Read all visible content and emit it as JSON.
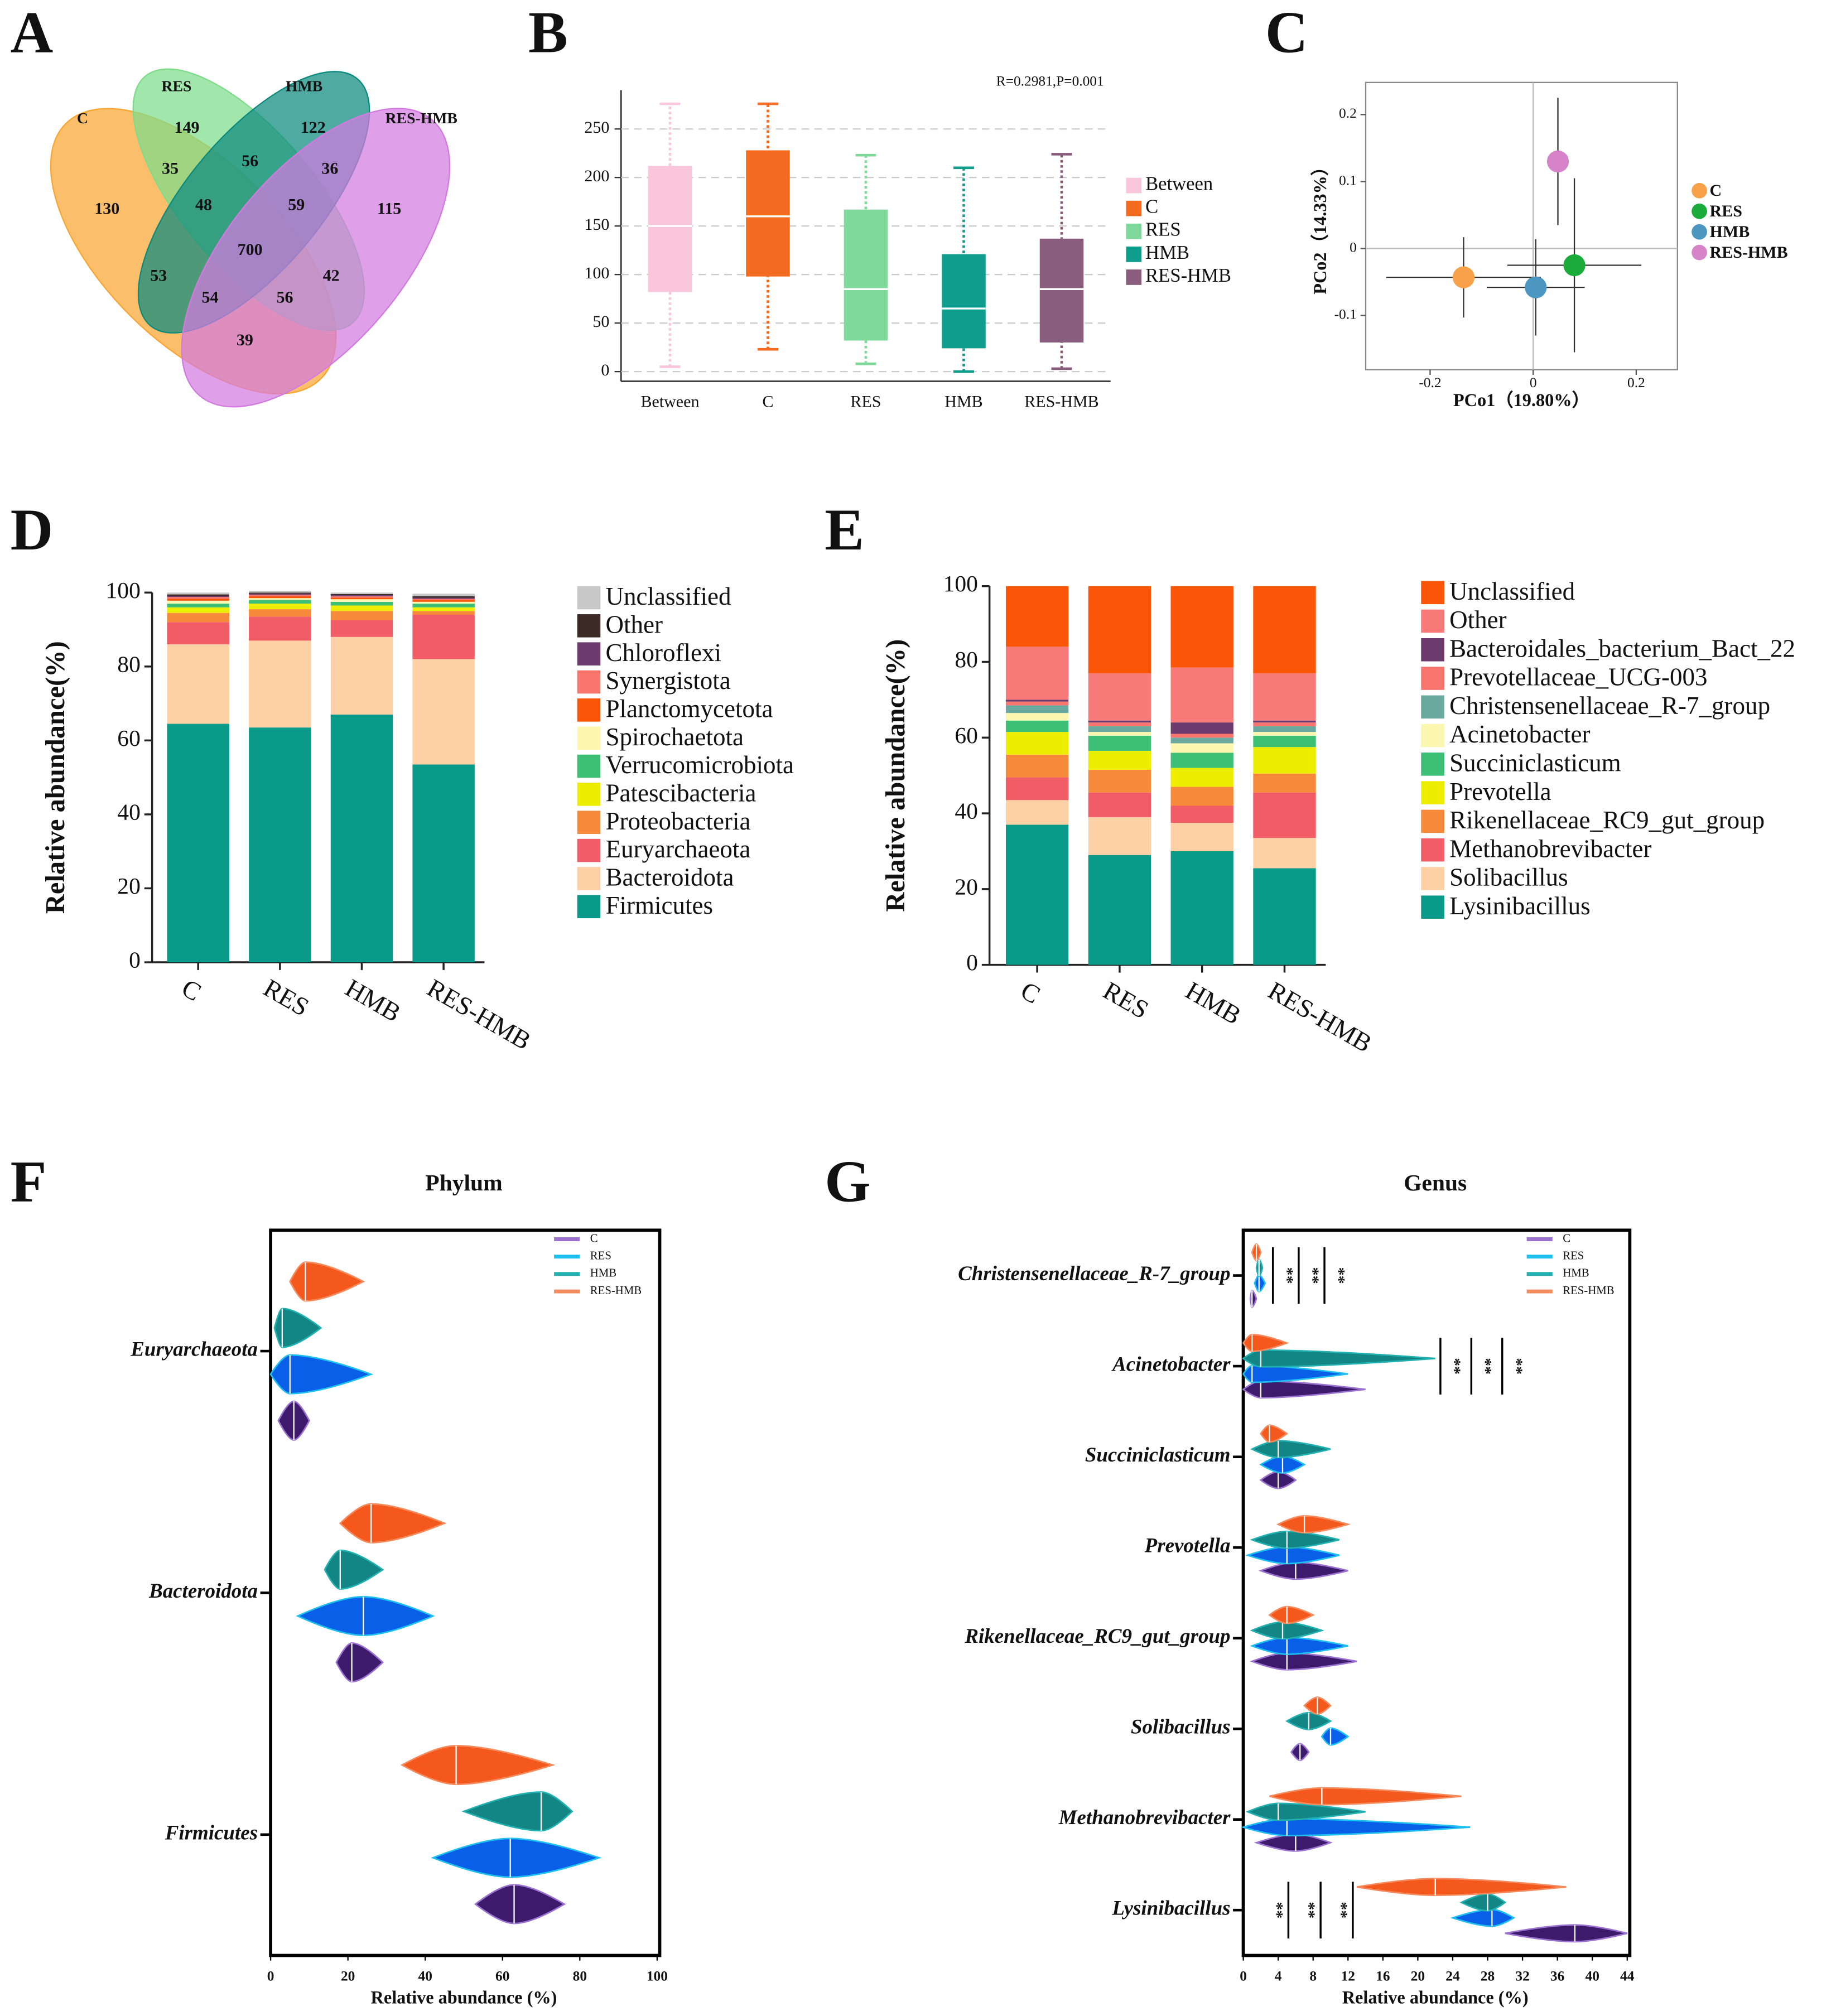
{
  "chart_data": [
    {
      "type": "venn",
      "panel": "A",
      "sets": [
        {
          "name": "C",
          "color": "#f9a531"
        },
        {
          "name": "RES",
          "color": "#7ddc8a"
        },
        {
          "name": "HMB",
          "color": "#0b8a7e"
        },
        {
          "name": "RES-HMB",
          "color": "#d27ae0"
        }
      ],
      "regions": [
        130,
        149,
        122,
        115,
        35,
        56,
        36,
        48,
        59,
        700,
        53,
        54,
        56,
        42,
        39
      ]
    },
    {
      "type": "box",
      "panel": "B",
      "annotation": "R=0.2981,P=0.001",
      "categories": [
        "Between",
        "C",
        "RES",
        "HMB",
        "RES-HMB"
      ],
      "colors": [
        "#f9c6dc",
        "#f26b21",
        "#7ed99b",
        "#0f9e8e",
        "#8a5d7f"
      ],
      "values": [
        {
          "min": 5,
          "q1": 82,
          "median": 150,
          "q3": 212,
          "max": 276
        },
        {
          "min": 23,
          "q1": 98,
          "median": 160,
          "q3": 228,
          "max": 276
        },
        {
          "min": 8,
          "q1": 32,
          "median": 85,
          "q3": 167,
          "max": 223
        },
        {
          "min": 0,
          "q1": 24,
          "median": 65,
          "q3": 121,
          "max": 210
        },
        {
          "min": 3,
          "q1": 30,
          "median": 85,
          "q3": 137,
          "max": 224
        }
      ],
      "ylim": [
        -10,
        290
      ],
      "yticks": [
        0,
        50,
        100,
        150,
        200,
        250
      ],
      "grid": true
    },
    {
      "type": "scatter",
      "panel": "C",
      "x_label": "PCo1（19.80%）",
      "y_label": "PCo2（14.33%）",
      "series": [
        {
          "name": "C",
          "color": "#f7a24a",
          "x": [
            -0.135
          ],
          "y": [
            -0.043
          ],
          "xerr": [
            0.15
          ],
          "yerr": [
            0.06
          ]
        },
        {
          "name": "RES",
          "color": "#1aab3a",
          "x": [
            0.08
          ],
          "y": [
            -0.025
          ],
          "xerr": [
            0.13
          ],
          "yerr": [
            0.13
          ]
        },
        {
          "name": "HMB",
          "color": "#4c97c1",
          "x": [
            0.005
          ],
          "y": [
            -0.058
          ],
          "xerr": [
            0.095
          ],
          "yerr": [
            0.072
          ]
        },
        {
          "name": "RES-HMB",
          "color": "#d683c9",
          "x": [
            0.048
          ],
          "y": [
            0.13
          ],
          "xerr": [
            0.02
          ],
          "yerr": [
            0.095
          ]
        }
      ],
      "xlim": [
        -0.325,
        0.28
      ],
      "ylim": [
        -0.181,
        0.248
      ],
      "xticks": [
        -0.2,
        0,
        0.2
      ],
      "yticks": [
        -0.1,
        0,
        0.1,
        0.2
      ]
    },
    {
      "type": "stacked_bar",
      "panel": "D",
      "y_label": "Relative abundance(%)",
      "categories": [
        "C",
        "RES",
        "HMB",
        "RES-HMB"
      ],
      "series": [
        {
          "name": "Firmicutes",
          "color": "#0a9a8a",
          "values": [
            64.5,
            63.5,
            67,
            53.5
          ]
        },
        {
          "name": "Bacteroidota",
          "color": "#fdd1a5",
          "values": [
            21.5,
            23.5,
            21,
            28.5
          ]
        },
        {
          "name": "Euryarchaeota",
          "color": "#f25c67",
          "values": [
            6,
            6.5,
            4.5,
            12
          ]
        },
        {
          "name": "Proteobacteria",
          "color": "#f7893b",
          "values": [
            2.5,
            2,
            2.5,
            1
          ]
        },
        {
          "name": "Patescibacteria",
          "color": "#eded00",
          "values": [
            1.5,
            1.5,
            1.5,
            1
          ]
        },
        {
          "name": "Verrucomicrobiota",
          "color": "#3dbf75",
          "values": [
            1,
            1,
            1,
            1
          ]
        },
        {
          "name": "Spirochaetota",
          "color": "#fbf7b0",
          "values": [
            0.8,
            0.5,
            0.7,
            0.5
          ]
        },
        {
          "name": "Planctomycetota",
          "color": "#fb5607",
          "values": [
            0.5,
            0.5,
            0.4,
            0.5
          ]
        },
        {
          "name": "Synergistota",
          "color": "#f9766f",
          "values": [
            0.5,
            0.4,
            0.4,
            0.3
          ]
        },
        {
          "name": "Chloroflexi",
          "color": "#6e3b6e",
          "values": [
            0.3,
            0.3,
            0.3,
            0.3
          ]
        },
        {
          "name": "Other",
          "color": "#3b2a26",
          "values": [
            0.4,
            0.3,
            0.3,
            0.4
          ]
        },
        {
          "name": "Unclassified",
          "color": "#c8c8c8",
          "values": [
            0.5,
            0.5,
            0.4,
            0.7
          ]
        }
      ],
      "ylim": [
        0,
        100
      ],
      "yticks": [
        0,
        20,
        40,
        60,
        80,
        100
      ]
    },
    {
      "type": "stacked_bar",
      "panel": "E",
      "y_label": "Relative abundance(%)",
      "categories": [
        "C",
        "RES",
        "HMB",
        "RES-HMB"
      ],
      "series": [
        {
          "name": "Lysinibacillus",
          "color": "#0a9a8a",
          "values": [
            37,
            29,
            30,
            25.5
          ]
        },
        {
          "name": "Solibacillus",
          "color": "#fdd1a5",
          "values": [
            6.5,
            10,
            7.5,
            8
          ]
        },
        {
          "name": "Methanobrevibacter",
          "color": "#f25c67",
          "values": [
            6,
            6.5,
            4.5,
            12
          ]
        },
        {
          "name": "Rikenellaceae_RC9_gut_group",
          "color": "#f7893b",
          "values": [
            6,
            6,
            5,
            5
          ]
        },
        {
          "name": "Prevotella",
          "color": "#eded00",
          "values": [
            6,
            5,
            5,
            7
          ]
        },
        {
          "name": "Succiniclasticum",
          "color": "#3dbf75",
          "values": [
            3,
            4,
            4,
            3
          ]
        },
        {
          "name": "Acinetobacter",
          "color": "#fbf7b0",
          "values": [
            2,
            1,
            2.5,
            1
          ]
        },
        {
          "name": "Christensenellaceae_R-7_group",
          "color": "#6aa9a0",
          "values": [
            2,
            1.5,
            1.5,
            1.5
          ]
        },
        {
          "name": "Prevotellaceae_UCG-003",
          "color": "#f9766f",
          "values": [
            1,
            1,
            1,
            1
          ]
        },
        {
          "name": "Bacteroidales_bacterium_Bact_22",
          "color": "#6e3b6e",
          "values": [
            0.5,
            0.5,
            3,
            0.5
          ]
        },
        {
          "name": "Other",
          "color": "#f87a78",
          "values": [
            14,
            12.5,
            14.5,
            12.5
          ]
        },
        {
          "name": "Unclassified",
          "color": "#fb5607",
          "values": [
            16,
            23,
            21.5,
            23
          ]
        }
      ],
      "ylim": [
        0,
        100
      ],
      "yticks": [
        0,
        20,
        40,
        60,
        80,
        100
      ]
    },
    {
      "type": "violin",
      "panel": "F",
      "title": "Phylum",
      "x_label": "Relative abundance (%)",
      "categories": [
        "Euryarchaeota",
        "Bacteroidota",
        "Firmicutes"
      ],
      "series": [
        {
          "name": "C",
          "color": "#3d1a6b",
          "edgecolor": "#9b72d0",
          "values": [
            {
              "min": 2,
              "median": 6,
              "max": 10
            },
            {
              "min": 17,
              "median": 21,
              "max": 29
            },
            {
              "min": 53,
              "median": 63,
              "max": 76
            }
          ]
        },
        {
          "name": "RES",
          "color": "#0a5fe8",
          "edgecolor": "#1ec0f0",
          "values": [
            {
              "min": 0,
              "median": 5,
              "max": 26
            },
            {
              "min": 7,
              "median": 24,
              "max": 42
            },
            {
              "min": 42,
              "median": 62,
              "max": 85
            }
          ]
        },
        {
          "name": "HMB",
          "color": "#138585",
          "edgecolor": "#20b0b0",
          "values": [
            {
              "min": 1,
              "median": 3,
              "max": 13
            },
            {
              "min": 14,
              "median": 18,
              "max": 29
            },
            {
              "min": 50,
              "median": 70,
              "max": 78
            }
          ]
        },
        {
          "name": "RES-HMB",
          "color": "#f4581c",
          "edgecolor": "#f58a5c",
          "values": [
            {
              "min": 5,
              "median": 9,
              "max": 24
            },
            {
              "min": 18,
              "median": 26,
              "max": 45
            },
            {
              "min": 34,
              "median": 48,
              "max": 73
            }
          ]
        }
      ],
      "xlim": [
        0,
        100
      ],
      "xticks": [
        0,
        20,
        40,
        60,
        80,
        100
      ]
    },
    {
      "type": "violin",
      "panel": "G",
      "title": "Genus",
      "x_label": "Relative abundance (%)",
      "categories": [
        "Christensenellaceae_R-7_group",
        "Acinetobacter",
        "Succiniclasticum",
        "Prevotella",
        "Rikenellaceae_RC9_gut_group",
        "Solibacillus",
        "Methanobrevibacter",
        "Lysinibacillus"
      ],
      "series": [
        {
          "name": "C",
          "color": "#3d1a6b",
          "edgecolor": "#9b72d0",
          "values": [
            {
              "min": 0.8,
              "median": 1,
              "max": 1.5
            },
            {
              "min": 0,
              "median": 2,
              "max": 14
            },
            {
              "min": 2,
              "median": 4,
              "max": 6
            },
            {
              "min": 2,
              "median": 6,
              "max": 12
            },
            {
              "min": 1,
              "median": 5,
              "max": 13
            },
            {
              "min": 5.5,
              "median": 6.5,
              "max": 7.5
            },
            {
              "min": 1.5,
              "median": 6,
              "max": 10
            },
            {
              "min": 30,
              "median": 38,
              "max": 44
            }
          ]
        },
        {
          "name": "RES",
          "color": "#0a5fe8",
          "edgecolor": "#1ec0f0",
          "values": [
            {
              "min": 1.3,
              "median": 1.8,
              "max": 2.5
            },
            {
              "min": 0,
              "median": 1,
              "max": 12
            },
            {
              "min": 2,
              "median": 4.5,
              "max": 7
            },
            {
              "min": 0.5,
              "median": 5,
              "max": 11
            },
            {
              "min": 1,
              "median": 5,
              "max": 12
            },
            {
              "min": 9,
              "median": 10,
              "max": 12
            },
            {
              "min": 0,
              "median": 5,
              "max": 26
            },
            {
              "min": 24,
              "median": 28.5,
              "max": 31
            }
          ]
        },
        {
          "name": "HMB",
          "color": "#138585",
          "edgecolor": "#20b0b0",
          "values": [
            {
              "min": 1.5,
              "median": 1.8,
              "max": 2.2
            },
            {
              "min": 0,
              "median": 2,
              "max": 22
            },
            {
              "min": 1,
              "median": 4,
              "max": 10
            },
            {
              "min": 1,
              "median": 5,
              "max": 11
            },
            {
              "min": 1,
              "median": 4.5,
              "max": 9
            },
            {
              "min": 5,
              "median": 7.5,
              "max": 10
            },
            {
              "min": 0.5,
              "median": 4,
              "max": 14
            },
            {
              "min": 25,
              "median": 28,
              "max": 30
            }
          ]
        },
        {
          "name": "RES-HMB",
          "color": "#f4581c",
          "edgecolor": "#f58a5c",
          "values": [
            {
              "min": 1,
              "median": 1.5,
              "max": 2
            },
            {
              "min": 0,
              "median": 1,
              "max": 5
            },
            {
              "min": 2,
              "median": 3,
              "max": 5
            },
            {
              "min": 4,
              "median": 7,
              "max": 12
            },
            {
              "min": 3,
              "median": 5,
              "max": 8
            },
            {
              "min": 7,
              "median": 8.5,
              "max": 10
            },
            {
              "min": 3,
              "median": 9,
              "max": 25
            },
            {
              "min": 13,
              "median": 22,
              "max": 37
            }
          ]
        }
      ],
      "significance": [
        [
          "**",
          "**",
          "**"
        ],
        [
          "**",
          "**",
          "**"
        ],
        [],
        [],
        [],
        [],
        [],
        [
          "**",
          "**",
          "**"
        ]
      ],
      "xlim": [
        0,
        44
      ],
      "xticks": [
        0,
        4,
        8,
        12,
        16,
        20,
        24,
        28,
        32,
        36,
        40,
        44
      ]
    }
  ]
}
